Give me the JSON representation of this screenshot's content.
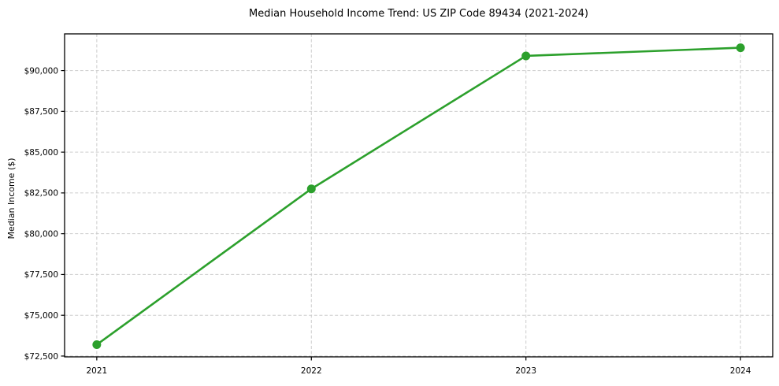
{
  "chart_data": {
    "type": "line",
    "title": "Median Household Income Trend: US ZIP Code 89434 (2021-2024)",
    "ylabel": "Median Income ($)",
    "xlabel": "",
    "x": [
      2021,
      2022,
      2023,
      2024
    ],
    "xtick_labels": [
      "2021",
      "2022",
      "2023",
      "2024"
    ],
    "series": [
      {
        "name": "Median Household Income",
        "values": [
          73200,
          82750,
          90900,
          91400
        ]
      }
    ],
    "yticks": [
      72500,
      75000,
      77500,
      80000,
      82500,
      85000,
      87500,
      90000
    ],
    "ytick_labels": [
      "$72,500",
      "$75,000",
      "$77,500",
      "$80,000",
      "$82,500",
      "$85,000",
      "$87,500",
      "$90,000"
    ],
    "ylim": [
      72450,
      92250
    ],
    "xmargin": 0.15,
    "grid": true,
    "grid_style": "dashed",
    "legend": "none",
    "line_color": "#2ca02c",
    "marker": "circle",
    "background": "#ffffff",
    "frame_color": "#000000",
    "grid_color": "#cdcdcd"
  }
}
